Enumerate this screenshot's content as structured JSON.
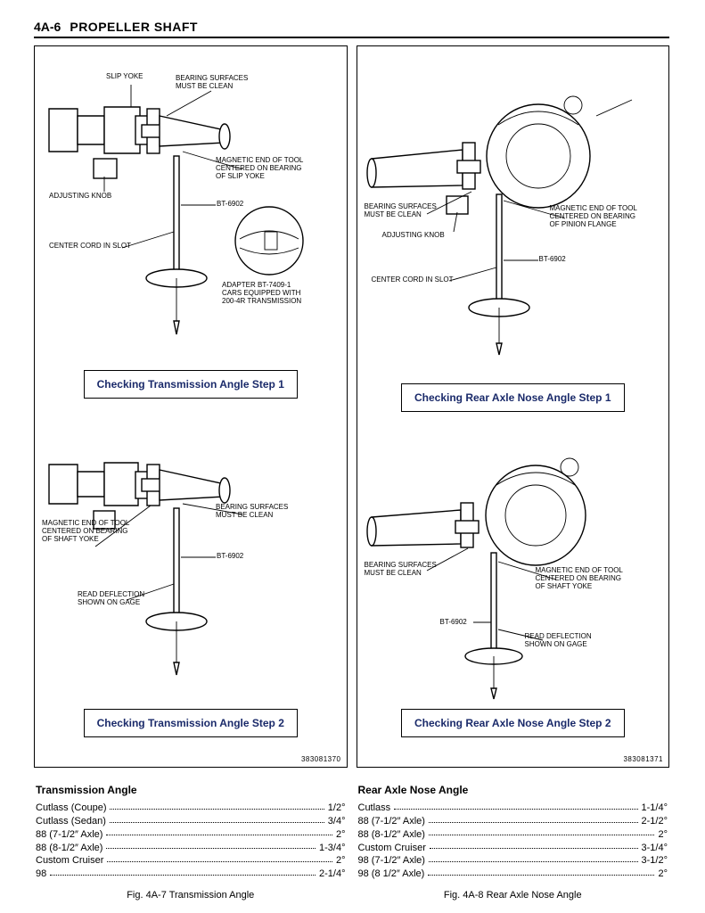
{
  "header": {
    "page_number": "4A-6",
    "title": "PROPELLER SHAFT"
  },
  "colors": {
    "text": "#000000",
    "accent": "#1a2a6a",
    "border": "#000000",
    "bg": "#ffffff"
  },
  "left": {
    "fig_code": "383081370",
    "step1": {
      "box": "Checking Transmission Angle Step 1",
      "labels": {
        "slip_yoke": "SLIP YOKE",
        "bearing_clean": "BEARING SURFACES\nMUST BE CLEAN",
        "adjusting_knob": "ADJUSTING KNOB",
        "magnetic": "MAGNETIC END OF TOOL\nCENTERED ON BEARING\nOF SLIP YOKE",
        "tool": "BT-6902",
        "center_cord": "CENTER CORD IN SLOT",
        "adapter": "ADAPTER BT-7409-1\nCARS EQUIPPED WITH\n200-4R TRANSMISSION"
      }
    },
    "step2": {
      "box": "Checking Transmission Angle Step 2",
      "labels": {
        "magnetic": "MAGNETIC END OF TOOL\nCENTERED ON BEARING\nOF SHAFT YOKE",
        "bearing_clean": "BEARING SURFACES\nMUST BE CLEAN",
        "tool": "BT-6902",
        "read_deflection": "READ DEFLECTION\nSHOWN ON GAGE"
      }
    },
    "angles": {
      "title": "Transmission Angle",
      "rows": [
        {
          "name": "Cutlass (Coupe)",
          "val": "1/2°"
        },
        {
          "name": "Cutlass (Sedan)",
          "val": "3/4°"
        },
        {
          "name": "88 (7-1/2″ Axle)",
          "val": "2°"
        },
        {
          "name": "88 (8-1/2″ Axle)",
          "val": "1-3/4°"
        },
        {
          "name": "Custom Cruiser",
          "val": "2°"
        },
        {
          "name": "98",
          "val": "2-1/4°"
        }
      ],
      "caption": "Fig. 4A-7 Transmission Angle"
    }
  },
  "right": {
    "fig_code": "383081371",
    "step1": {
      "box": "Checking Rear Axle Nose Angle Step 1",
      "labels": {
        "bearing_clean": "BEARING SURFACES\nMUST BE CLEAN",
        "adjusting_knob": "ADJUSTING KNOB",
        "magnetic": "MAGNETIC END OF TOOL\nCENTERED ON BEARING\nOF PINION FLANGE",
        "tool": "BT-6902",
        "center_cord": "CENTER CORD IN SLOT"
      }
    },
    "step2": {
      "box": "Checking Rear Axle Nose Angle Step 2",
      "labels": {
        "bearing_clean": "BEARING SURFACES\nMUST BE CLEAN",
        "magnetic": "MAGNETIC END OF TOOL\nCENTERED ON BEARING\nOF SHAFT YOKE",
        "tool": "BT-6902",
        "read_deflection": "READ DEFLECTION\nSHOWN ON GAGE"
      }
    },
    "angles": {
      "title": "Rear Axle Nose Angle",
      "rows": [
        {
          "name": "Cutlass",
          "val": "1-1/4°"
        },
        {
          "name": "88 (7-1/2″ Axle)",
          "val": "2-1/2°"
        },
        {
          "name": "88 (8-1/2″ Axle)",
          "val": "2°"
        },
        {
          "name": "Custom Cruiser",
          "val": "3-1/4°"
        },
        {
          "name": "98 (7-1/2″ Axle)",
          "val": "3-1/2°"
        },
        {
          "name": "98 (8 1/2″ Axle)",
          "val": "2°"
        }
      ],
      "caption": "Fig. 4A-8 Rear Axle Nose Angle"
    }
  }
}
